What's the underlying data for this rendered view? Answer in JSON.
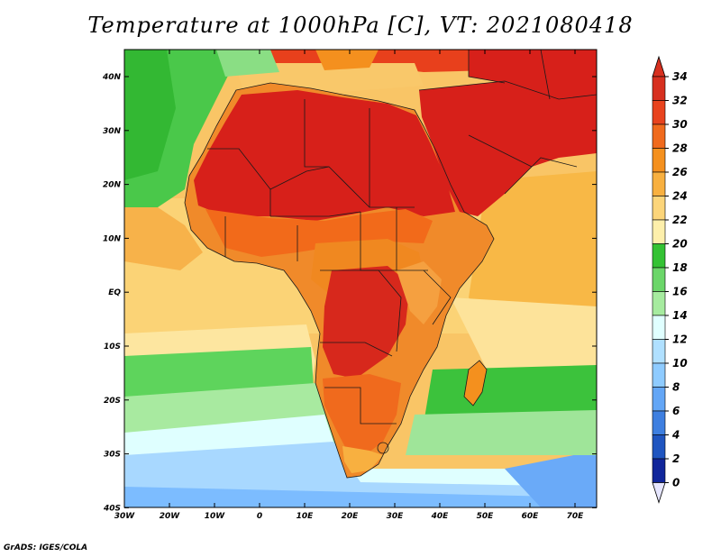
{
  "title": "Temperature at 1000hPa [C], VT: 2021080418",
  "credit": "GrADS: IGES/COLA",
  "map": {
    "region": "Africa",
    "lon_labels": [
      "30W",
      "20W",
      "10W",
      "0",
      "10E",
      "20E",
      "30E",
      "40E",
      "50E",
      "60E",
      "70E"
    ],
    "lat_labels": [
      "40N",
      "30N",
      "20N",
      "10N",
      "EQ",
      "10S",
      "20S",
      "30S",
      "40S"
    ]
  },
  "colorbar": {
    "labels": [
      "34",
      "32",
      "30",
      "28",
      "26",
      "24",
      "22",
      "20",
      "18",
      "16",
      "14",
      "12",
      "10",
      "8",
      "6",
      "4",
      "2",
      "0"
    ],
    "colors": [
      "#d7301f",
      "#e8431e",
      "#f06a1d",
      "#f4901e",
      "#f8b040",
      "#fcd57a",
      "#fdefab",
      "#34c234",
      "#6bd669",
      "#a6eb9f",
      "#e0ffff",
      "#b0e0ff",
      "#8ecbff",
      "#63a6f6",
      "#3e7fe0",
      "#1f55c0",
      "#11269b",
      "#0a1070"
    ]
  },
  "colors": {
    "land_hot": "#d7201a",
    "border": "#1a1a1a"
  }
}
